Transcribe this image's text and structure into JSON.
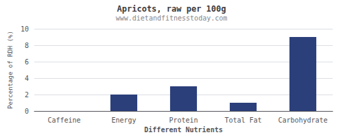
{
  "chart_data": {
    "type": "bar",
    "title": "Apricots, raw per 100g",
    "subtitle": "www.dietandfitnesstoday.com",
    "xlabel": "Different Nutrients",
    "ylabel": "Percentage of RDH (%)",
    "categories": [
      "Caffeine",
      "Energy",
      "Protein",
      "Total Fat",
      "Carbohydrate"
    ],
    "values": [
      0,
      2,
      3,
      1,
      9
    ],
    "color": "#2b3f7a",
    "ylim": [
      0,
      10
    ],
    "yticks": [
      0,
      2,
      4,
      6,
      8,
      10
    ],
    "grid": true
  }
}
